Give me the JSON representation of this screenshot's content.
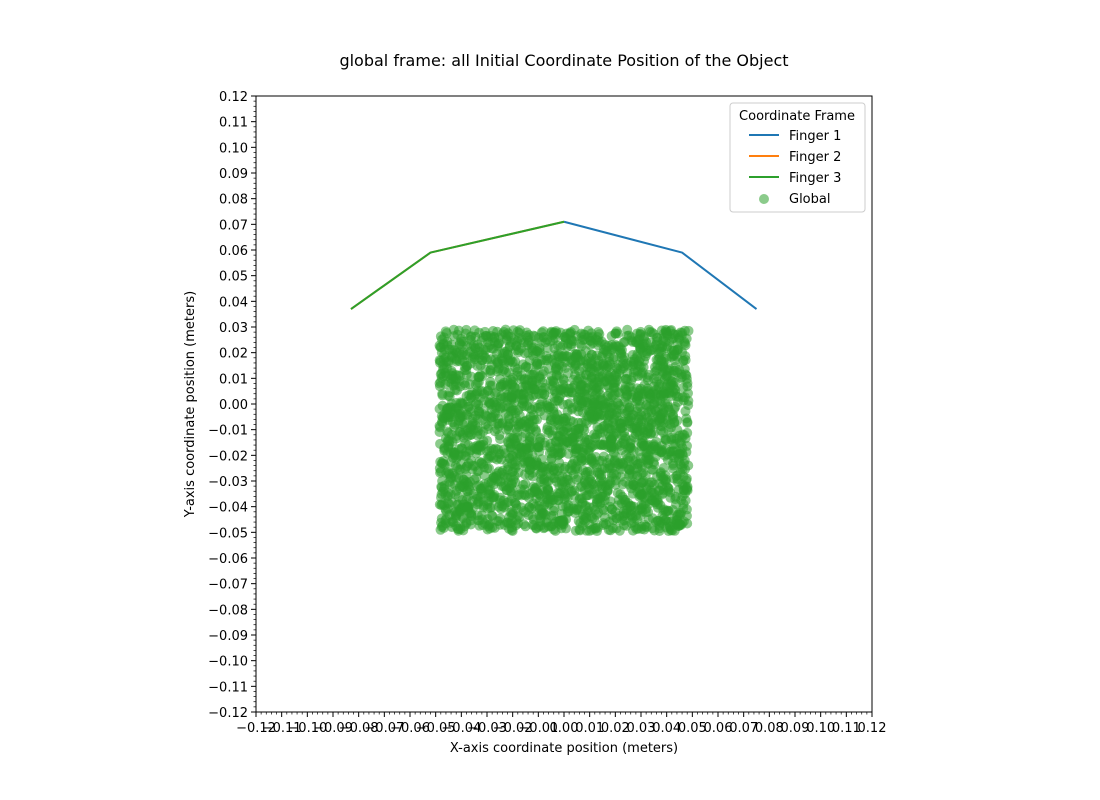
{
  "chart_data": {
    "type": "line",
    "title": "global frame: all Initial Coordinate Position of the Object",
    "xlabel": "X-axis coordinate position (meters)",
    "ylabel": "Y-axis coordinate position (meters)",
    "xlim": [
      -0.12,
      0.12
    ],
    "ylim": [
      -0.12,
      0.12
    ],
    "x_ticks": [
      "−0.12",
      "−0.11",
      "−0.10",
      "−0.09",
      "−0.08",
      "−0.07",
      "−0.06",
      "−0.05",
      "−0.04",
      "−0.03",
      "−0.02",
      "−0.01",
      "0.00",
      "0.01",
      "0.02",
      "0.03",
      "0.04",
      "0.05",
      "0.06",
      "0.07",
      "0.08",
      "0.09",
      "0.10",
      "0.11",
      "0.12"
    ],
    "y_ticks": [
      "−0.12",
      "−0.11",
      "−0.10",
      "−0.09",
      "−0.08",
      "−0.07",
      "−0.06",
      "−0.05",
      "−0.04",
      "−0.03",
      "−0.02",
      "−0.01",
      "0.00",
      "0.01",
      "0.02",
      "0.03",
      "0.04",
      "0.05",
      "0.06",
      "0.07",
      "0.08",
      "0.09",
      "0.10",
      "0.11",
      "0.12"
    ],
    "grid": false,
    "legend": {
      "title": "Coordinate Frame",
      "placement": "top-right"
    },
    "series": [
      {
        "name": "Finger 1",
        "kind": "line",
        "color": "#1f77b4",
        "x": [
          0.0,
          0.046,
          0.075
        ],
        "y": [
          0.071,
          0.059,
          0.037
        ]
      },
      {
        "name": "Finger 2",
        "kind": "line",
        "color": "#ff7f0e",
        "x": [
          0.0,
          -0.052,
          -0.083
        ],
        "y": [
          0.071,
          0.059,
          0.037
        ]
      },
      {
        "name": "Finger 3",
        "kind": "line",
        "color": "#2ca02c",
        "x": [
          0.0,
          -0.052,
          -0.083
        ],
        "y": [
          0.071,
          0.059,
          0.037
        ]
      },
      {
        "name": "Global",
        "kind": "scatter",
        "color": "#2ca02c",
        "alpha": 0.55,
        "region": {
          "x": [
            -0.0485,
            0.0485
          ],
          "y": [
            -0.0495,
            0.029
          ]
        }
      }
    ]
  }
}
